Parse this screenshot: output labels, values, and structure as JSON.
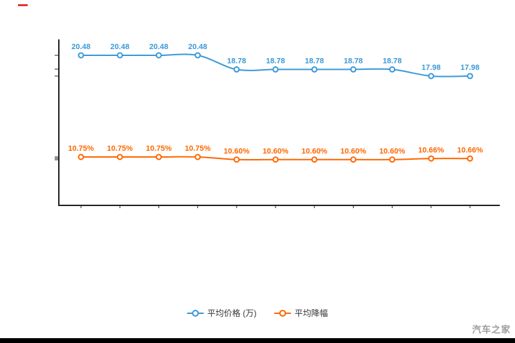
{
  "watermark": "汽车之家",
  "chart_data": {
    "type": "line",
    "title": "",
    "x_axis": {
      "labels_visible": false,
      "tick_count": 11
    },
    "grid": false,
    "legend_position": "bottom",
    "series": [
      {
        "name": "平均价格 (万)",
        "color": "#3a99d8",
        "values": [
          20.48,
          20.48,
          20.48,
          20.48,
          18.78,
          18.78,
          18.78,
          18.78,
          18.78,
          17.98,
          17.98
        ],
        "labels": [
          "20.48",
          "20.48",
          "20.48",
          "20.48",
          "18.78",
          "18.78",
          "18.78",
          "18.78",
          "18.78",
          "17.98",
          "17.98"
        ]
      },
      {
        "name": "平均降幅",
        "color": "#ff6600",
        "values": [
          10.75,
          10.75,
          10.75,
          10.75,
          10.6,
          10.6,
          10.6,
          10.6,
          10.6,
          10.66,
          10.66
        ],
        "labels": [
          "10.75%",
          "10.75%",
          "10.75%",
          "10.75%",
          "10.60%",
          "10.60%",
          "10.60%",
          "10.60%",
          "10.60%",
          "10.66%",
          "10.66%"
        ]
      }
    ]
  }
}
